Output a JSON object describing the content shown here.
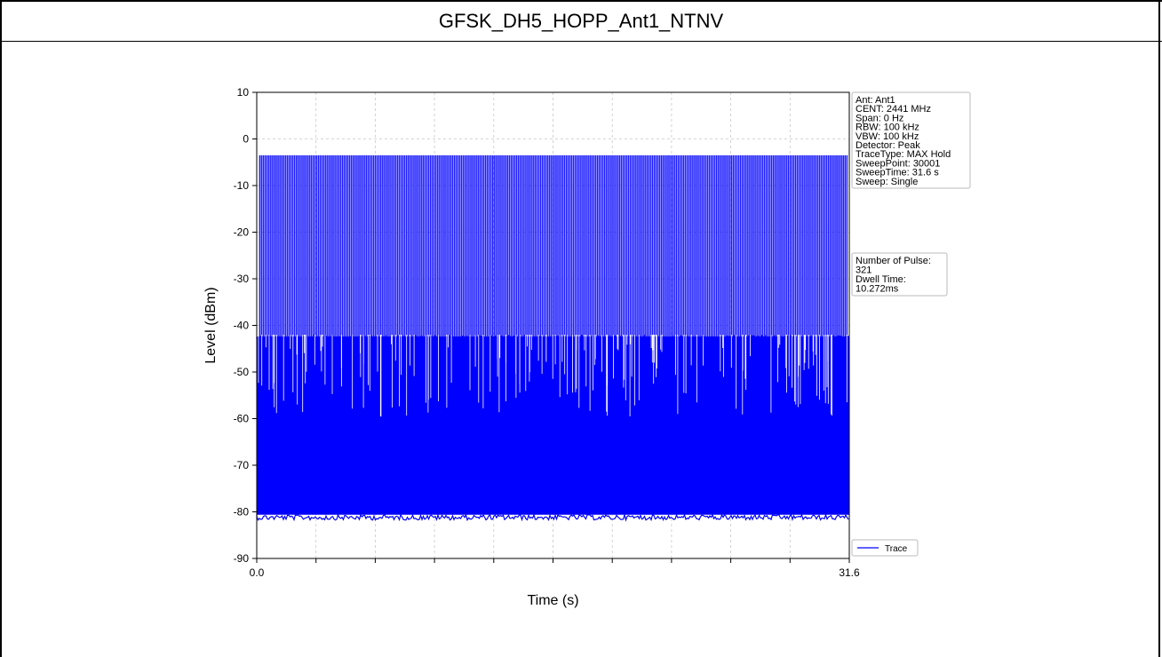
{
  "table": {
    "title": "GFSK_DH5_HOPP_Ant1_NTNV"
  },
  "chart_data": {
    "type": "line",
    "title": "",
    "xlabel": "Time (s)",
    "ylabel": "Level (dBm)",
    "xlim": [
      0.0,
      31.6
    ],
    "ylim": [
      -90,
      10
    ],
    "x_tick_labels": [
      "0.0",
      "31.6"
    ],
    "y_tick_labels": [
      "10",
      "0",
      "-10",
      "-20",
      "-30",
      "-40",
      "-50",
      "-60",
      "-70",
      "-80",
      "-90"
    ],
    "grid": true,
    "legend_position": "lower-right",
    "series": [
      {
        "name": "Trace",
        "color": "#0000ff",
        "description_values": {
          "pulse_peak_level": -3.5,
          "noise_ceiling": -42,
          "noise_floor": -81,
          "pulse_count": 321
        }
      }
    ],
    "info_box": [
      "Ant: Ant1",
      "CENT: 2441 MHz",
      "Span: 0 Hz",
      "RBW: 100 kHz",
      "VBW: 100 kHz",
      "Detector: Peak",
      "TraceType: MAX Hold",
      "SweepPoint: 30001",
      "SweepTime: 31.6 s",
      "Sweep: Single"
    ],
    "result_box": [
      "Number of Pulse:",
      " 321",
      "Dwell Time:",
      " 10.272ms"
    ]
  }
}
